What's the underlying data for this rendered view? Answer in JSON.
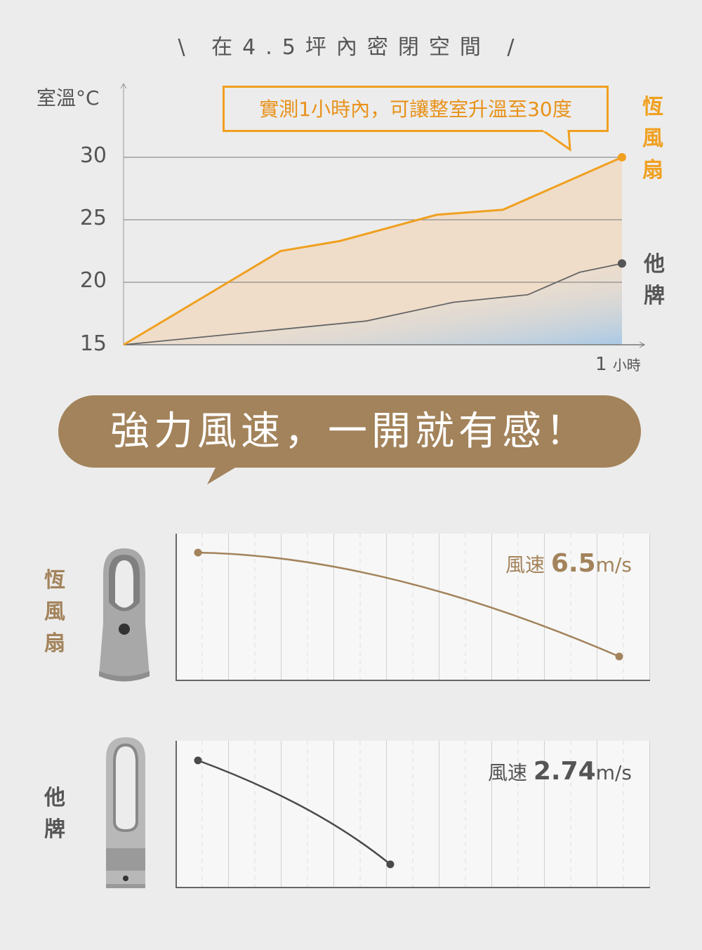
{
  "headline": "\\ 在4.5坪內密閉空間 /",
  "banner": "強力風速，一開就有感！",
  "colors": {
    "hengfan": "#f0a020",
    "other": "#666666",
    "accent_brown": "#a3835b",
    "blue_fill": "#a9c9e6"
  },
  "chart_data": [
    {
      "type": "line",
      "ylabel": "室溫°C",
      "yticks": [
        "30",
        "25",
        "20",
        "15"
      ],
      "ylim": [
        15,
        30
      ],
      "xlim": [
        0,
        1
      ],
      "xlabel_value": "1",
      "xlabel_unit": "小時",
      "grid": true,
      "annotation": "實測1小時內，可讓整室升溫至30度",
      "series": [
        {
          "name": "恆風扇",
          "x": [
            0,
            0.315,
            0.434,
            0.628,
            0.761,
            1
          ],
          "y": [
            15,
            22.5,
            23.3,
            25.4,
            25.8,
            30
          ]
        },
        {
          "name": "他牌",
          "x": [
            0,
            0.487,
            0.662,
            0.811,
            0.915,
            1
          ],
          "y": [
            15,
            16.9,
            18.4,
            19.0,
            20.8,
            21.5
          ]
        }
      ]
    },
    {
      "type": "line",
      "name": "恆風扇",
      "label": "風速",
      "value": "6.5",
      "unit": "m/s"
    },
    {
      "type": "line",
      "name": "他牌",
      "label": "風速",
      "value": "2.74",
      "unit": "m/s"
    }
  ]
}
